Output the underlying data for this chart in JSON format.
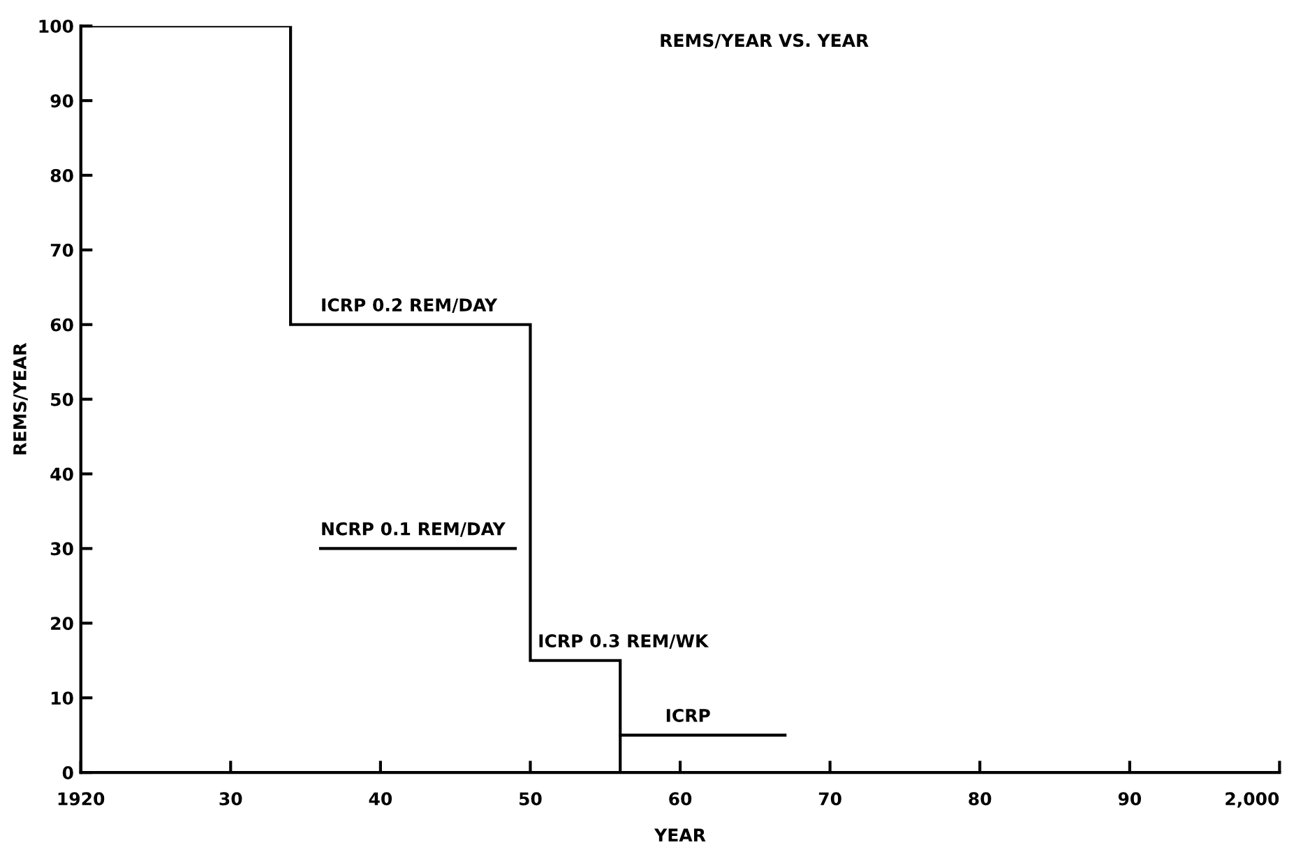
{
  "chart_data": {
    "type": "histogram",
    "title": "REMS/YEAR VS. YEAR",
    "xlabel": "YEAR",
    "ylabel": "REMS/YEAR",
    "bins": [
      1920,
      1934,
      1950,
      1956
    ],
    "values": [
      100,
      60,
      15
    ],
    "color": "#000000",
    "series": [
      {
        "type": "line",
        "color": "#000000",
        "x": [
          1956,
          1967
        ],
        "values": [
          5,
          5
        ]
      },
      {
        "type": "line",
        "color": "#000000",
        "x": [
          1936,
          1949
        ],
        "values": [
          30,
          30
        ]
      }
    ],
    "annotations": [
      {
        "text": "ICRP 0.2 REM/DAY",
        "x": 1936,
        "y": 60
      },
      {
        "text": "NCRP 0.1 REM/DAY",
        "x": 1936,
        "y": 30
      },
      {
        "text": "ICRP 0.3 REM/WK",
        "x": 1950.5,
        "y": 15
      },
      {
        "text": "ICRP",
        "x": 1959,
        "y": 5
      }
    ],
    "xlim": [
      1920,
      2000
    ],
    "ylim": [
      0,
      100
    ],
    "xticks": [
      {
        "value": 1920,
        "label": "1920"
      },
      {
        "value": 1930,
        "label": "30"
      },
      {
        "value": 1940,
        "label": "40"
      },
      {
        "value": 1950,
        "label": "50"
      },
      {
        "value": 1960,
        "label": "60"
      },
      {
        "value": 1970,
        "label": "70"
      },
      {
        "value": 1980,
        "label": "80"
      },
      {
        "value": 1990,
        "label": "90"
      },
      {
        "value": 2000,
        "label": "2,000"
      }
    ],
    "yticks": [
      0,
      10,
      20,
      30,
      40,
      50,
      60,
      70,
      80,
      90,
      100
    ],
    "grid": false,
    "legend": false
  }
}
